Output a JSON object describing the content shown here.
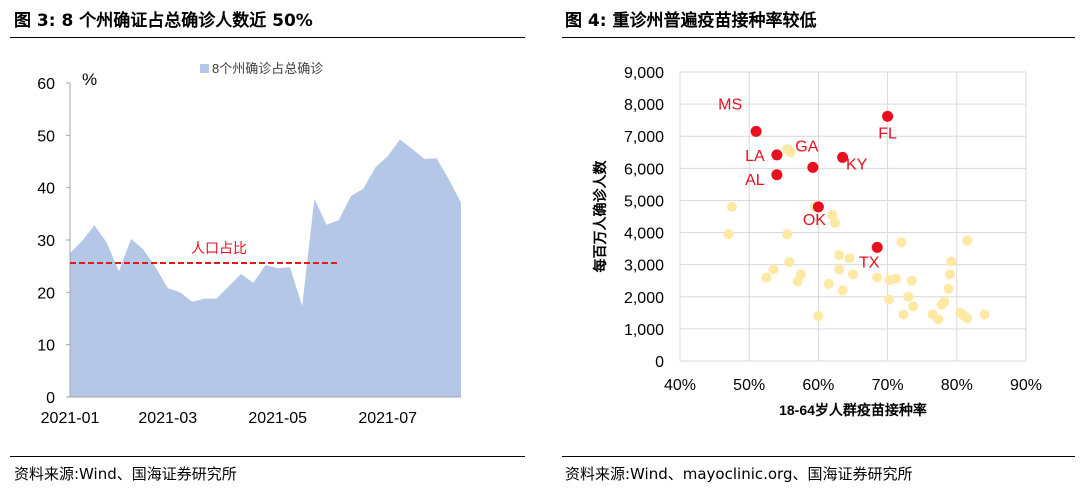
{
  "left_panel": {
    "title": "图 3:  8 个州确证占总确诊人数近 50%",
    "source": "资料来源:Wind、国海证券研究所"
  },
  "right_panel": {
    "title": "图 4:  重诊州普遍疫苗接种率较低",
    "source": "资料来源:Wind、mayoclinic.org、国海证券研究所"
  },
  "colors": {
    "area_fill": "#b4c7e7",
    "reference_line": "#e11a1a",
    "highlight_point": "#e8101e",
    "other_point": "#fde9a4",
    "grid": "#d9d9d9",
    "label_red": "#e8101e"
  },
  "chart_data": [
    {
      "type": "area",
      "unit_label": "%",
      "legend": "8个州确诊占总确诊",
      "legend_position": "top",
      "ylim": [
        0,
        60
      ],
      "yticks": [
        0,
        10,
        20,
        30,
        40,
        50,
        60
      ],
      "xtick_labels": [
        "2021-01",
        "2021-03",
        "2021-05",
        "2021-07"
      ],
      "xtick_index": [
        0,
        8,
        17,
        26
      ],
      "grid": false,
      "series": [
        {
          "name": "8个州确诊占总确诊",
          "values": [
            27.5,
            29.8,
            32.8,
            29.5,
            24,
            30.2,
            28.2,
            24.8,
            20.8,
            20,
            18.2,
            18.8,
            18.8,
            21.2,
            23.5,
            21.8,
            25.2,
            24.6,
            24.8,
            17.4,
            37.9,
            32.9,
            33.8,
            38.4,
            39.8,
            43.9,
            46.0,
            49.2,
            47.4,
            45.5,
            45.6,
            41.6,
            37.1
          ]
        }
      ],
      "reference_line": {
        "label": "人口占比",
        "value": 25.6,
        "end_index": 22
      }
    },
    {
      "type": "scatter",
      "xlabel": "18-64岁人群疫苗接种率",
      "ylabel": "每百万人确诊人数",
      "xlim": [
        40,
        90
      ],
      "ylim": [
        0,
        9000
      ],
      "xtick_labels": [
        "40%",
        "50%",
        "60%",
        "70%",
        "80%",
        "90%"
      ],
      "ytick_labels": [
        "0",
        "1,000",
        "2,000",
        "3,000",
        "4,000",
        "5,000",
        "6,000",
        "7,000",
        "8,000",
        "9,000"
      ],
      "grid": true,
      "highlighted": [
        {
          "label": "MS",
          "x": 51,
          "y": 7150
        },
        {
          "label": "FL",
          "x": 70,
          "y": 7620
        },
        {
          "label": "LA",
          "x": 54,
          "y": 6420
        },
        {
          "label": "GA",
          "x": 59.2,
          "y": 6030
        },
        {
          "label": "KY",
          "x": 63.5,
          "y": 6340
        },
        {
          "label": "AL",
          "x": 54,
          "y": 5800
        },
        {
          "label": "OK",
          "x": 60,
          "y": 4800
        },
        {
          "label": "TX",
          "x": 68.5,
          "y": 3540
        }
      ],
      "others": [
        {
          "x": 47.5,
          "y": 4800
        },
        {
          "x": 47,
          "y": 3950
        },
        {
          "x": 55.5,
          "y": 6600
        },
        {
          "x": 56,
          "y": 6500
        },
        {
          "x": 55.5,
          "y": 3950
        },
        {
          "x": 52.5,
          "y": 2600
        },
        {
          "x": 53.5,
          "y": 2850
        },
        {
          "x": 55.8,
          "y": 3080
        },
        {
          "x": 57,
          "y": 2480
        },
        {
          "x": 57.5,
          "y": 2700
        },
        {
          "x": 59.5,
          "y": 4800
        },
        {
          "x": 62,
          "y": 4550
        },
        {
          "x": 62.4,
          "y": 4300
        },
        {
          "x": 60,
          "y": 1400
        },
        {
          "x": 61.5,
          "y": 2400
        },
        {
          "x": 63,
          "y": 3300
        },
        {
          "x": 63,
          "y": 2850
        },
        {
          "x": 63.5,
          "y": 2200
        },
        {
          "x": 64.5,
          "y": 3200
        },
        {
          "x": 65,
          "y": 2700
        },
        {
          "x": 68.5,
          "y": 2600
        },
        {
          "x": 70.3,
          "y": 2520
        },
        {
          "x": 70.2,
          "y": 1920
        },
        {
          "x": 71.2,
          "y": 2560
        },
        {
          "x": 72,
          "y": 3700
        },
        {
          "x": 73,
          "y": 2000
        },
        {
          "x": 73.7,
          "y": 1700
        },
        {
          "x": 73.5,
          "y": 2500
        },
        {
          "x": 72.3,
          "y": 1450
        },
        {
          "x": 76.5,
          "y": 1450
        },
        {
          "x": 77.3,
          "y": 1300
        },
        {
          "x": 77.8,
          "y": 1750
        },
        {
          "x": 78.2,
          "y": 1850
        },
        {
          "x": 78.8,
          "y": 2250
        },
        {
          "x": 79,
          "y": 2700
        },
        {
          "x": 79.2,
          "y": 3100
        },
        {
          "x": 80.5,
          "y": 1500
        },
        {
          "x": 81,
          "y": 1420
        },
        {
          "x": 81.5,
          "y": 1330
        },
        {
          "x": 81.5,
          "y": 3750
        },
        {
          "x": 84,
          "y": 1450
        }
      ]
    }
  ]
}
